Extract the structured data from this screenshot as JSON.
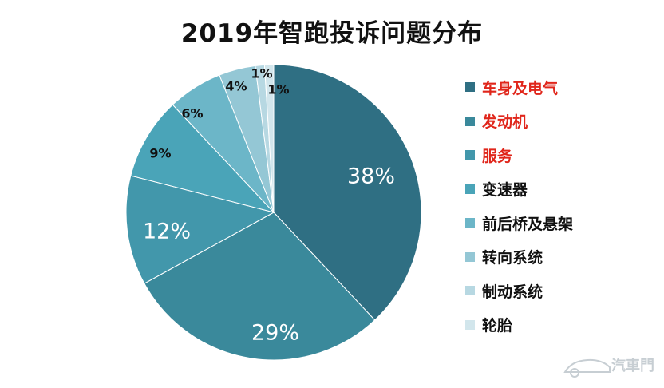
{
  "chart_data": {
    "type": "pie",
    "title": "2019年智跑投诉问题分布",
    "slices": [
      {
        "label": "车身及电气",
        "value": 38,
        "display": "38%",
        "color": "#2f6f83",
        "legend_color": "#e0261b"
      },
      {
        "label": "发动机",
        "value": 29,
        "display": "29%",
        "color": "#3a899b",
        "legend_color": "#e0261b"
      },
      {
        "label": "服务",
        "value": 12,
        "display": "12%",
        "color": "#4297ab",
        "legend_color": "#e0261b"
      },
      {
        "label": "变速器",
        "value": 9,
        "display": "9%",
        "color": "#4aa4b8",
        "legend_color": "#111111"
      },
      {
        "label": "前后桥及悬架",
        "value": 6,
        "display": "6%",
        "color": "#6cb6c8",
        "legend_color": "#111111"
      },
      {
        "label": "转向系统",
        "value": 4,
        "display": "4%",
        "color": "#94c7d5",
        "legend_color": "#111111"
      },
      {
        "label": "制动系统",
        "value": 1,
        "display": "1%",
        "color": "#b7d8e2",
        "legend_color": "#111111"
      },
      {
        "label": "轮胎",
        "value": 1,
        "display": "1%",
        "color": "#d2e6ec",
        "legend_color": "#111111"
      }
    ],
    "legend_position": "right"
  },
  "watermark": "汽車門"
}
